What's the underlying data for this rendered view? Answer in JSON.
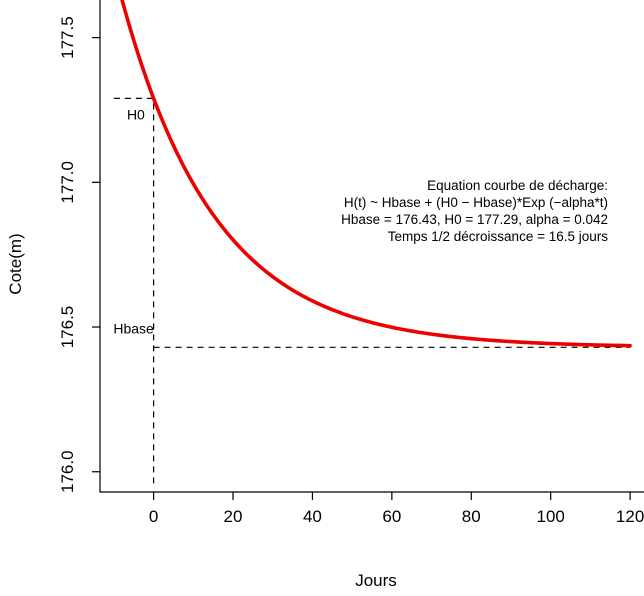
{
  "chart_data": {
    "type": "line",
    "xlabel": "Jours",
    "ylabel": "Cote(m)",
    "xlim": [
      -13.5,
      123.5
    ],
    "ylim": [
      175.93,
      177.63
    ],
    "x_ticks": [
      0,
      20,
      40,
      60,
      80,
      100,
      120
    ],
    "y_ticks": [
      176.0,
      176.5,
      177.0,
      177.5
    ],
    "x_tick_labels": [
      "0",
      "20",
      "40",
      "60",
      "80",
      "100",
      "120"
    ],
    "y_tick_labels": [
      "176.0",
      "176.5",
      "177.0",
      "177.5"
    ],
    "grid": false,
    "series": [
      {
        "color": "#ee0000",
        "model": "H(t) = Hbase + (H0 - Hbase)*exp(-alpha*t)",
        "params": {
          "Hbase": 176.43,
          "H0": 177.29,
          "alpha": 0.042
        },
        "x_range": [
          -10,
          120
        ],
        "x": [
          -10,
          0,
          10,
          20,
          30,
          40,
          60,
          80,
          100,
          120
        ],
        "values": [
          177.72,
          177.29,
          176.99,
          176.8,
          176.67,
          176.59,
          176.5,
          176.46,
          176.44,
          176.43
        ]
      }
    ],
    "reference_lines": {
      "H0": {
        "label": "H0",
        "value": 177.29,
        "x_from": -10,
        "x_to": 0
      },
      "Hbase": {
        "label": "Hbase",
        "value": 176.43,
        "x_from": 0,
        "x_to": 120
      },
      "t0": {
        "value": 0,
        "y_from": 175.96,
        "y_to": 177.29
      }
    },
    "annotation": {
      "lines": [
        "Equation courbe de décharge:",
        "H(t) ~ Hbase + (H0 − Hbase)*Exp (−alpha*t)",
        "Hbase = 176.43, H0 = 177.29, alpha = 0.042",
        "Temps 1/2 décroissance = 16.5 jours"
      ]
    }
  }
}
